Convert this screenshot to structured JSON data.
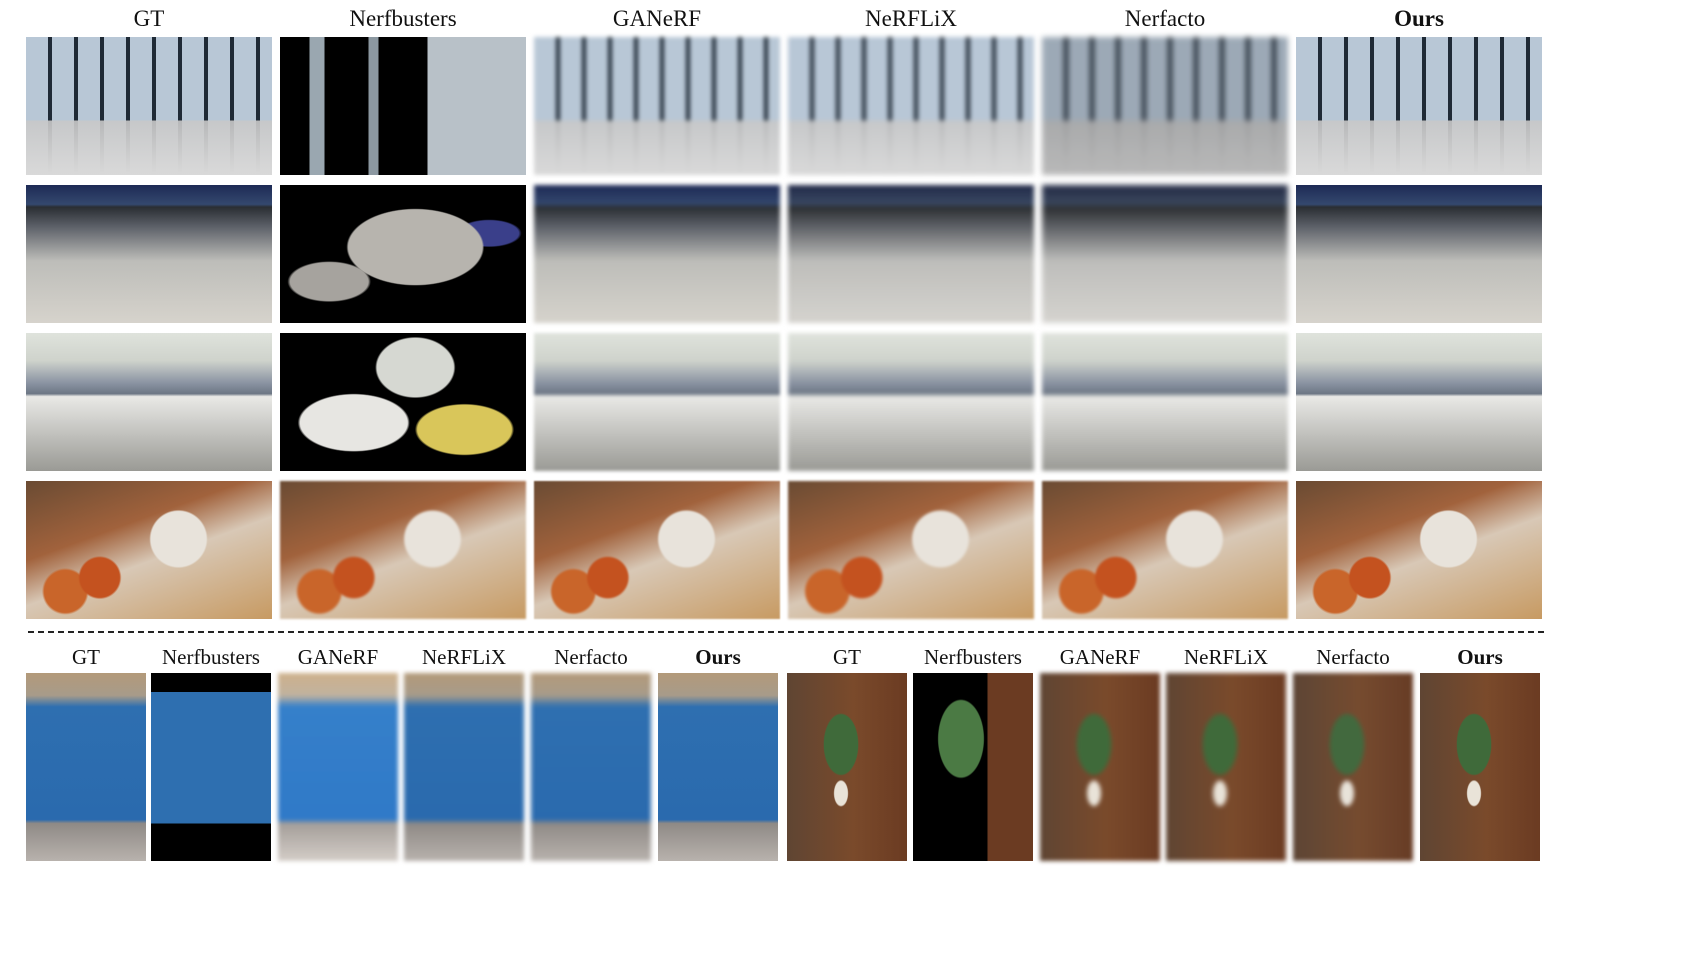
{
  "top_columns": [
    "GT",
    "Nerfbusters",
    "GANeRF",
    "NeRFLiX",
    "Nerfacto",
    "Ours"
  ],
  "bottom_columns_left": [
    "GT",
    "Nerfbusters",
    "GANeRF",
    "NeRFLiX",
    "Nerfacto",
    "Ours"
  ],
  "bottom_columns_right": [
    "GT",
    "Nerfbusters",
    "GANeRF",
    "NeRFLiX",
    "Nerfacto",
    "Ours"
  ]
}
